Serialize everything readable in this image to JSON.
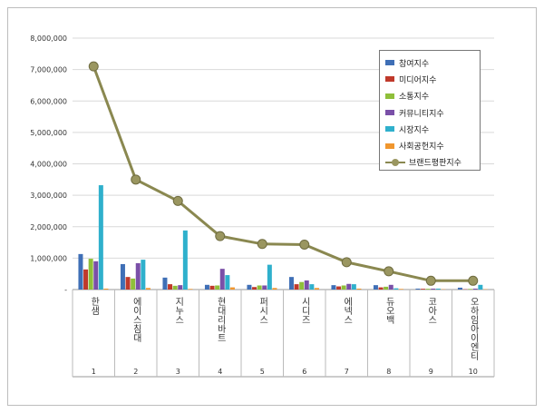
{
  "chart_data": {
    "type": "bar+line",
    "categories": [
      "한샘",
      "에이스침대",
      "지누스",
      "현대리바트",
      "퍼시스",
      "시디즈",
      "에넥스",
      "듀오백",
      "코아스",
      "오하임아이엔티"
    ],
    "ranks": [
      "1",
      "2",
      "3",
      "4",
      "5",
      "6",
      "7",
      "8",
      "9",
      "10"
    ],
    "ylim": [
      0,
      8000000
    ],
    "yticks": [
      "-",
      "1,000,000",
      "2,000,000",
      "3,000,000",
      "4,000,000",
      "5,000,000",
      "6,000,000",
      "7,000,000",
      "8,000,000"
    ],
    "grid": true,
    "legend_position": "top-right",
    "series": [
      {
        "name": "참여지수",
        "type": "bar",
        "color": "#3f6fb6",
        "values": [
          1130000,
          810000,
          380000,
          150000,
          150000,
          400000,
          140000,
          140000,
          30000,
          60000
        ]
      },
      {
        "name": "미디어지수",
        "type": "bar",
        "color": "#c0392b",
        "values": [
          640000,
          400000,
          170000,
          120000,
          80000,
          170000,
          100000,
          70000,
          25000,
          10000
        ]
      },
      {
        "name": "소통지수",
        "type": "bar",
        "color": "#8fbf3a",
        "values": [
          980000,
          350000,
          120000,
          130000,
          130000,
          240000,
          130000,
          90000,
          25000,
          20000
        ]
      },
      {
        "name": "커뮤니티지수",
        "type": "bar",
        "color": "#7a50a8",
        "values": [
          900000,
          840000,
          140000,
          660000,
          130000,
          290000,
          180000,
          150000,
          30000,
          30000
        ]
      },
      {
        "name": "시장지수",
        "type": "bar",
        "color": "#2fb0cc",
        "values": [
          3320000,
          950000,
          1880000,
          460000,
          790000,
          170000,
          170000,
          40000,
          30000,
          150000
        ]
      },
      {
        "name": "사회공헌지수",
        "type": "bar",
        "color": "#f0962e",
        "values": [
          30000,
          50000,
          20000,
          70000,
          50000,
          50000,
          30000,
          20000,
          10000,
          10000
        ]
      },
      {
        "name": "브랜드평판지수",
        "type": "line",
        "color": "#8a8850",
        "values": [
          7100000,
          3500000,
          2820000,
          1700000,
          1450000,
          1430000,
          870000,
          580000,
          280000,
          280000
        ]
      }
    ]
  }
}
